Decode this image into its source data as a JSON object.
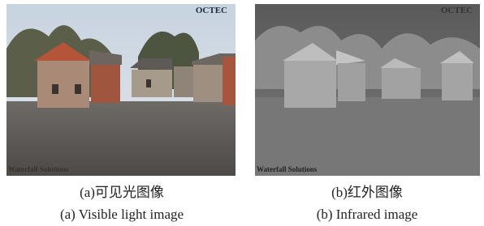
{
  "panels": [
    {
      "logo": "OCTEC",
      "credit": "Waterfall Solutions",
      "caption_zh": "(a)可见光图像",
      "caption_en": "(a) Visible light image"
    },
    {
      "logo": "OCTEC",
      "credit": "Waterfall Solutions",
      "caption_zh": "(b)红外图像",
      "caption_en": "(b) Infrared image"
    }
  ]
}
